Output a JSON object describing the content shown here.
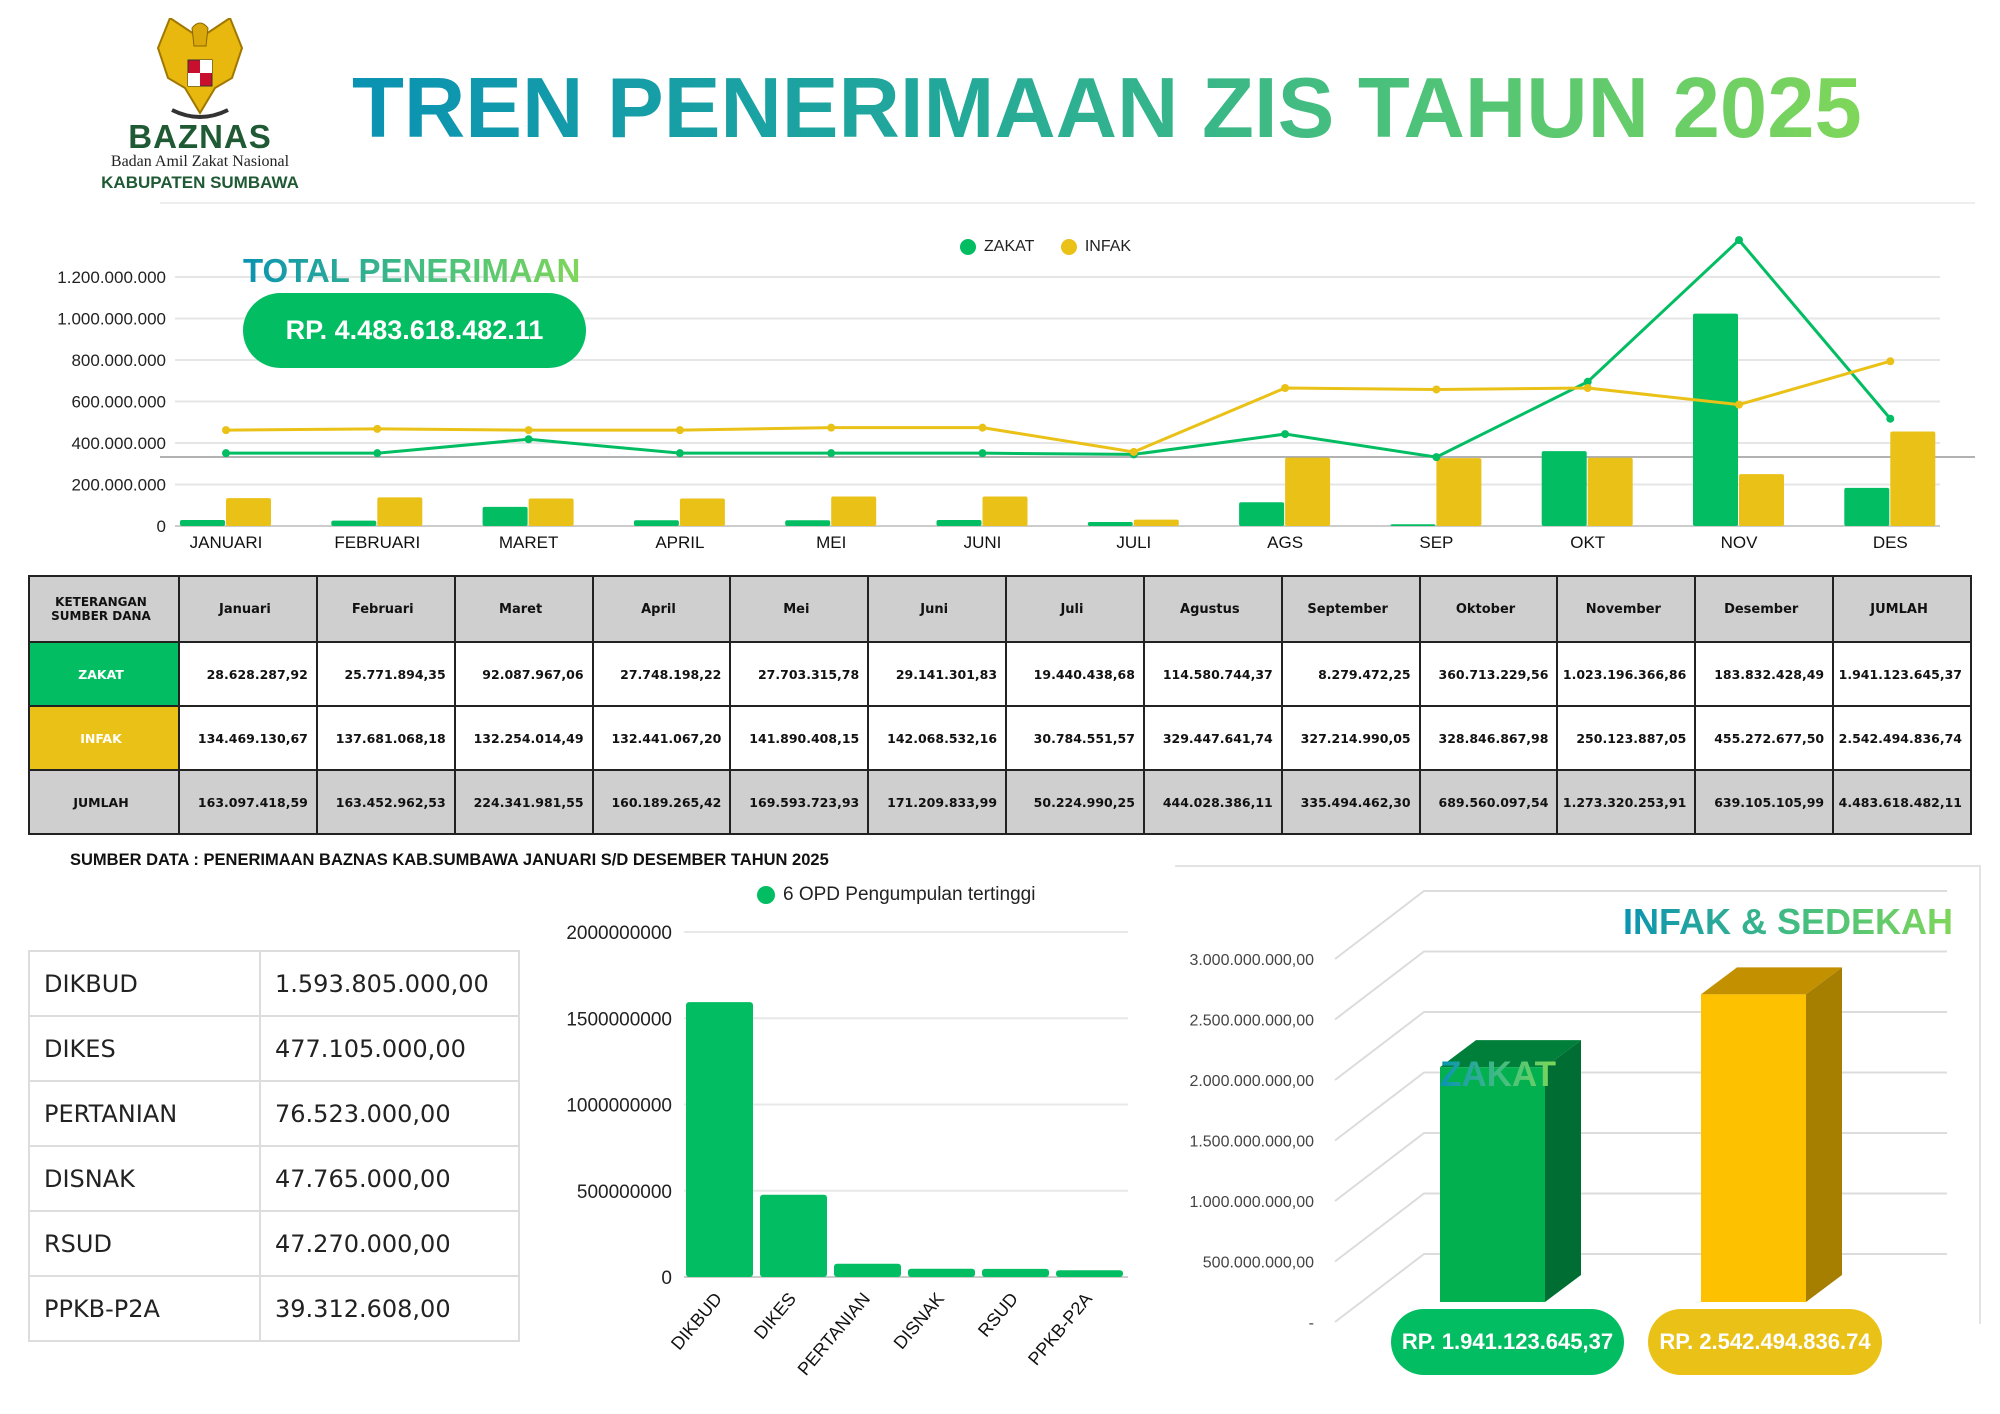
{
  "header": {
    "title": "TREN PENERIMAAN ZIS TAHUN 2025",
    "logo": {
      "name": "BAZNAS",
      "subtitle": "Badan Amil Zakat Nasional",
      "region": "KABUPATEN SUMBAWA",
      "emblem": "garuda-pancasila-emblem"
    }
  },
  "total": {
    "title": "TOTAL PENERIMAAN",
    "value": "RP. 4.483.618.482.11"
  },
  "colors": {
    "zakat": "#02bd62",
    "infak": "#eac117",
    "title_start": "#0a93b3",
    "title_end": "#7fd65a"
  },
  "table": {
    "headers": [
      "KETERANGAN SUMBER DANA",
      "Januari",
      "Februari",
      "Maret",
      "April",
      "Mei",
      "Juni",
      "Juli",
      "Agustus",
      "September",
      "Oktober",
      "November",
      "Desember",
      "JUMLAH"
    ],
    "rows": [
      {
        "label": "ZAKAT",
        "values": [
          "28.628.287,92",
          "25.771.894,35",
          "92.087.967,06",
          "27.748.198,22",
          "27.703.315,78",
          "29.141.301,83",
          "19.440.438,68",
          "114.580.744,37",
          "8.279.472,25",
          "360.713.229,56",
          "1.023.196.366,86",
          "183.832.428,49",
          "1.941.123.645,37"
        ]
      },
      {
        "label": "INFAK",
        "values": [
          "134.469.130,67",
          "137.681.068,18",
          "132.254.014,49",
          "132.441.067,20",
          "141.890.408,15",
          "142.068.532,16",
          "30.784.551,57",
          "329.447.641,74",
          "327.214.990,05",
          "328.846.867,98",
          "250.123.887,05",
          "455.272.677,50",
          "2.542.494.836,74"
        ]
      },
      {
        "label": "JUMLAH",
        "values": [
          "163.097.418,59",
          "163.452.962,53",
          "224.341.981,55",
          "160.189.265,42",
          "169.593.723,93",
          "171.209.833,99",
          "50.224.990,25",
          "444.028.386,11",
          "335.494.462,30",
          "689.560.097,54",
          "1.273.320.253,91",
          "639.105.105,99",
          "4.483.618.482,11"
        ]
      }
    ]
  },
  "source_note": "SUMBER DATA : PENERIMAAN BAZNAS KAB.SUMBAWA JANUARI S/D DESEMBER TAHUN 2025",
  "opd_table": [
    {
      "name": "DIKBUD",
      "value": "1.593.805.000,00"
    },
    {
      "name": "DIKES",
      "value": "477.105.000,00"
    },
    {
      "name": "PERTANIAN",
      "value": "76.523.000,00"
    },
    {
      "name": "DISNAK",
      "value": "47.765.000,00"
    },
    {
      "name": "RSUD",
      "value": "47.270.000,00"
    },
    {
      "name": "PPKB-P2A",
      "value": "39.312.608,00"
    }
  ],
  "chart_data": [
    {
      "type": "bar",
      "categories": [
        "JANUARI",
        "FEBRUARI",
        "MARET",
        "APRIL",
        "MEI",
        "JUNI",
        "JULI",
        "AGS",
        "SEP",
        "OKT",
        "NOV",
        "DES"
      ],
      "series": [
        {
          "name": "ZAKAT",
          "color": "#02bd62",
          "values": [
            28628287.92,
            25771894.35,
            92087967.06,
            27748198.22,
            27703315.78,
            29141301.83,
            19440438.68,
            114580744.37,
            8279472.25,
            360713229.56,
            1023196366.86,
            183832428.49
          ]
        },
        {
          "name": "INFAK",
          "color": "#eac117",
          "values": [
            134469130.67,
            137681068.18,
            132254014.49,
            132441067.2,
            141890408.15,
            142068532.16,
            30784551.57,
            329447641.74,
            327214990.05,
            328846867.98,
            250123887.05,
            455272677.5
          ]
        }
      ],
      "line_series": [
        {
          "name": "ZAKAT",
          "color": "#02bd62",
          "values": [
            351000000,
            351000000,
            418000000,
            351000000,
            351000000,
            351000000,
            345000000,
            443000000,
            332000000,
            695000000,
            1378000000,
            517000000
          ]
        },
        {
          "name": "INFAK",
          "color": "#eac117",
          "values": [
            462000000,
            468000000,
            462000000,
            462000000,
            474000000,
            474000000,
            357000000,
            665000000,
            658000000,
            665000000,
            585000000,
            794000000
          ]
        }
      ],
      "yticks": [
        "0",
        "200.000.000",
        "400.000.000",
        "600.000.000",
        "800.000.000",
        "1.000.000.000",
        "1.200.000.000"
      ],
      "ylim": [
        0,
        1200000000
      ],
      "grid": true,
      "legend": "top-center"
    },
    {
      "type": "bar",
      "categories": [
        "DIKBUD",
        "DIKES",
        "PERTANIAN",
        "DISNAK",
        "RSUD",
        "PPKB-P2A"
      ],
      "series": [
        {
          "name": "6 OPD Pengumpulan tertinggi",
          "color": "#02bd62",
          "values": [
            1593805000,
            477105000,
            76523000,
            47765000,
            47270000,
            39312608
          ]
        }
      ],
      "yticks": [
        "0",
        "500000000",
        "1000000000",
        "1500000000",
        "2000000000"
      ],
      "ylim": [
        0,
        2000000000
      ],
      "grid": true,
      "legend": "top-center"
    },
    {
      "type": "bar",
      "categories": [
        "ZAKAT",
        "INFAK & SEDEKAH"
      ],
      "series": [
        {
          "values": [
            1941123645.37,
            2542494836.74
          ],
          "colors": [
            "#02b050",
            "#fdc100"
          ]
        }
      ],
      "value_labels": [
        "RP. 1.941.123.645,37",
        "RP. 2.542.494.836.74"
      ],
      "yticks": [
        "-",
        "500.000.000,00",
        "1.000.000.000,00",
        "1.500.000.000,00",
        "2.000.000.000,00",
        "2.500.000.000,00",
        "3.000.000.000,00"
      ],
      "ylim": [
        0,
        3000000000
      ],
      "grid": true,
      "style": "3d"
    }
  ]
}
